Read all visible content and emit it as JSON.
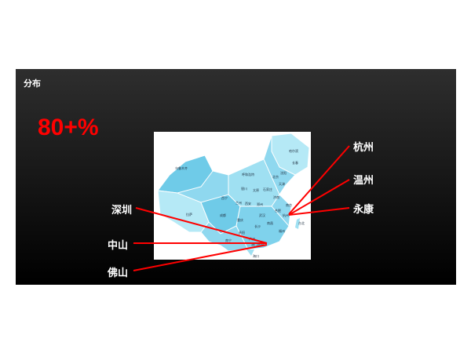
{
  "slide": {
    "title": "分布",
    "headline": "80+%",
    "left_cities": [
      "深圳",
      "中山",
      "佛山"
    ],
    "right_cities": [
      "杭州",
      "温州",
      "永康"
    ],
    "line_color": "#ff0000",
    "map_colors": [
      "#6fcbe8",
      "#9fe0f2",
      "#c7eef8"
    ],
    "map_city_labels": [
      "乌鲁木齐",
      "哈尔滨",
      "长春",
      "沈阳",
      "呼和浩特",
      "北京",
      "天津",
      "银川",
      "太原",
      "石家庄",
      "济南",
      "西宁",
      "兰州",
      "西安",
      "郑州",
      "南京",
      "合肥",
      "拉萨",
      "成都",
      "武汉",
      "杭州",
      "重庆",
      "南昌",
      "长沙",
      "福州",
      "贵阳",
      "台北",
      "南宁",
      "广州",
      "香港",
      "澳门",
      "海口"
    ]
  }
}
